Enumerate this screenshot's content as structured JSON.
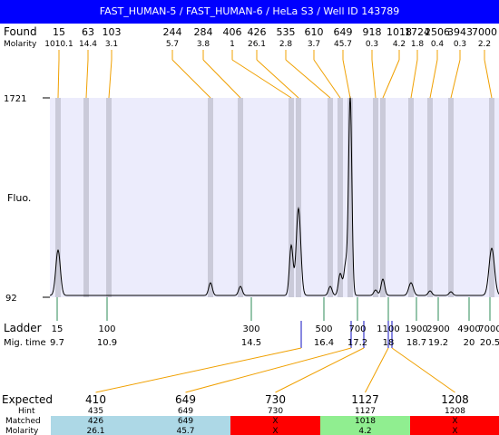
{
  "header": {
    "title": "FAST_HUMAN-5 / FAST_HUMAN-6 / HeLa S3 / Well ID 143789"
  },
  "labels": {
    "found": "Found",
    "molarity": "Molarity",
    "fluo": "Fluo.",
    "ladder": "Ladder",
    "mig_time": "Mig. time",
    "expected": "Expected",
    "hint": "Hint",
    "matched": "Matched",
    "molarity_row": "Molarity"
  },
  "colors": {
    "title_bg": "#0000ff",
    "plot_bg": "#ececfc",
    "peak_band": "#c4c4d2",
    "found_line": "#f0a000",
    "ladder_line": "#2e8b57",
    "marker_line": "#1010c0",
    "match_blue": "#add8e6",
    "match_red": "#ff0000",
    "match_green": "#90ee90"
  },
  "chart_data": {
    "type": "line",
    "title": "FAST_HUMAN-5 / FAST_HUMAN-6 / HeLa S3 / Well ID 143789",
    "y_axis": {
      "label": "Fluo.",
      "min": 92,
      "max": 1721,
      "ticks": [
        "1721",
        "92"
      ]
    },
    "found_peaks": [
      {
        "size": "15",
        "molarity": "1010.1"
      },
      {
        "size": "63",
        "molarity": "14.4"
      },
      {
        "size": "103",
        "molarity": "3.1"
      },
      {
        "size": "244",
        "molarity": "5.7"
      },
      {
        "size": "284",
        "molarity": "3.8"
      },
      {
        "size": "406",
        "molarity": "1"
      },
      {
        "size": "426",
        "molarity": "26.1"
      },
      {
        "size": "535",
        "molarity": "2.8"
      },
      {
        "size": "610",
        "molarity": "3.7"
      },
      {
        "size": "649",
        "molarity": "45.7"
      },
      {
        "size": "918",
        "molarity": "0.3"
      },
      {
        "size": "1018",
        "molarity": "4.2"
      },
      {
        "size": "1724",
        "molarity": "1.8"
      },
      {
        "size": "2506",
        "molarity": "0.4"
      },
      {
        "size": "3943",
        "molarity": "0.3"
      },
      {
        "size": "7000",
        "molarity": "2.2"
      }
    ],
    "ladder": [
      {
        "size": "15",
        "mig_time": "9.7"
      },
      {
        "size": "100",
        "mig_time": "10.9"
      },
      {
        "size": "300",
        "mig_time": "14.5"
      },
      {
        "size": "500",
        "mig_time": "16.4"
      },
      {
        "size": "700",
        "mig_time": "17.2"
      },
      {
        "size": "1100",
        "mig_time": "18"
      },
      {
        "size": "1900",
        "mig_time": "18.7"
      },
      {
        "size": "2900",
        "mig_time": "19.2"
      },
      {
        "size": "4900",
        "mig_time": "20"
      },
      {
        "size": "7000",
        "mig_time": "20.5"
      }
    ],
    "expected": [
      {
        "expected": "410",
        "hint": "435",
        "matched": "426",
        "molarity": "26.1",
        "status": "match"
      },
      {
        "expected": "649",
        "hint": "649",
        "matched": "649",
        "molarity": "45.7",
        "status": "match"
      },
      {
        "expected": "730",
        "hint": "730",
        "matched": "X",
        "molarity": "X",
        "status": "missing"
      },
      {
        "expected": "1127",
        "hint": "1127",
        "matched": "1018",
        "molarity": "4.2",
        "status": "partial"
      },
      {
        "expected": "1208",
        "hint": "1208",
        "matched": "X",
        "molarity": "X",
        "status": "missing"
      }
    ]
  }
}
